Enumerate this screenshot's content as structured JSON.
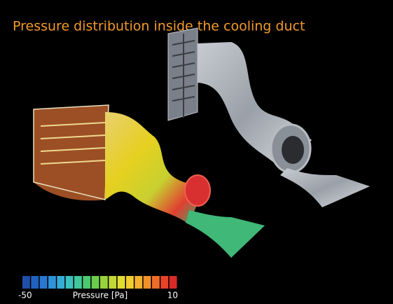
{
  "title": "Pressure distribution inside the cooling duct",
  "colorbar": {
    "label": "Pressure [Pa]",
    "min": -50,
    "max": 10,
    "colors": [
      "#1f4fa8",
      "#2060c0",
      "#2877d0",
      "#2f93d8",
      "#35acd6",
      "#3cc0c0",
      "#40c89c",
      "#4cc870",
      "#6ccc4c",
      "#98d23c",
      "#c2d836",
      "#e2dc32",
      "#f2cc30",
      "#f4b02e",
      "#f2902c",
      "#ee6c2a",
      "#e84428",
      "#d82a26"
    ]
  }
}
